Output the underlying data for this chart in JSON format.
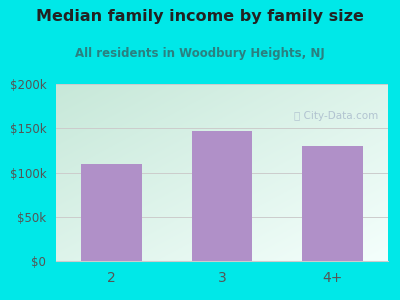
{
  "title": "Median family income by family size",
  "subtitle": "All residents in Woodbury Heights, NJ",
  "categories": [
    "2",
    "3",
    "4+"
  ],
  "values": [
    110000,
    147000,
    130000
  ],
  "bar_color": "#b090c8",
  "bg_color": "#00e8e8",
  "title_color": "#222222",
  "subtitle_color": "#2a8080",
  "tick_color": "#555555",
  "grid_color": "#cccccc",
  "ylim": [
    0,
    200000
  ],
  "yticks": [
    0,
    50000,
    100000,
    150000,
    200000
  ],
  "ytick_labels": [
    "$0",
    "$50k",
    "$100k",
    "$150k",
    "$200k"
  ],
  "watermark_text": "City-Data.com",
  "watermark_color": "#aabbcc",
  "plot_bg_topleft": "#d8f0e8",
  "plot_bg_topright": "#f0fafa",
  "plot_bg_bottomleft": "#c8ead8",
  "plot_bg_bottomright": "#e8f8f8"
}
